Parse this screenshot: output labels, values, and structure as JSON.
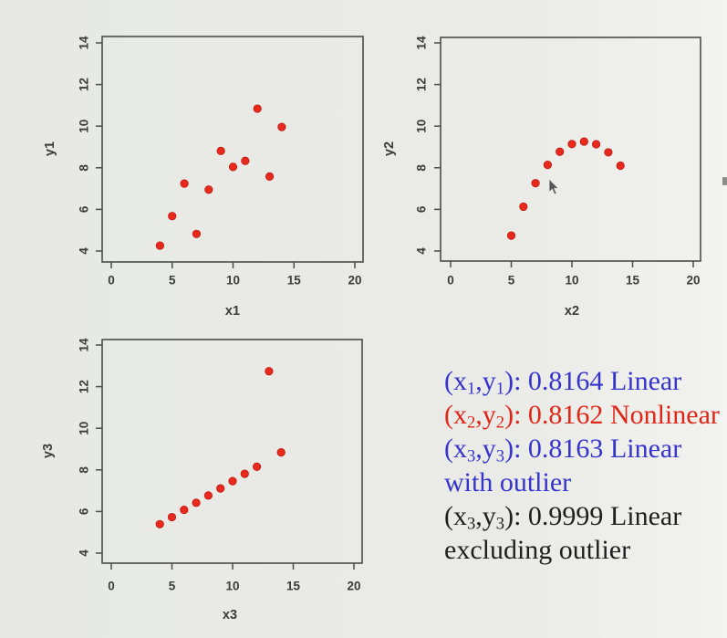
{
  "colors": {
    "background": "#e9eae6",
    "point": "#e8291e",
    "point_edge": "#c0170e",
    "frame": "#4b4b49",
    "axis_text": "#3b3b39",
    "annotation_blue": "#3534cd",
    "annotation_red": "#e02617",
    "annotation_black": "#1f1f1f"
  },
  "chart_data": [
    {
      "type": "scatter",
      "title": "",
      "xlabel": "x1",
      "ylabel": "y1",
      "xlim": [
        0,
        20
      ],
      "ylim": [
        4,
        14
      ],
      "xticks": [
        0,
        5,
        10,
        15,
        20
      ],
      "yticks": [
        4,
        6,
        8,
        10,
        12,
        14
      ],
      "grid": false,
      "legend": false,
      "marker": "filled-circle",
      "points": [
        [
          4,
          4.26
        ],
        [
          5,
          5.68
        ],
        [
          6,
          7.24
        ],
        [
          7,
          4.82
        ],
        [
          8,
          6.95
        ],
        [
          9,
          8.81
        ],
        [
          10,
          8.04
        ],
        [
          11,
          8.33
        ],
        [
          12,
          10.84
        ],
        [
          13,
          7.58
        ],
        [
          14,
          9.96
        ]
      ]
    },
    {
      "type": "scatter",
      "title": "",
      "xlabel": "x2",
      "ylabel": "y2",
      "xlim": [
        0,
        20
      ],
      "ylim": [
        4,
        14
      ],
      "xticks": [
        0,
        5,
        10,
        15,
        20
      ],
      "yticks": [
        4,
        6,
        8,
        10,
        12,
        14
      ],
      "grid": false,
      "legend": false,
      "marker": "filled-circle",
      "points": [
        [
          5,
          4.74
        ],
        [
          6,
          6.13
        ],
        [
          7,
          7.26
        ],
        [
          8,
          8.14
        ],
        [
          9,
          8.77
        ],
        [
          10,
          9.14
        ],
        [
          11,
          9.26
        ],
        [
          12,
          9.13
        ],
        [
          13,
          8.74
        ],
        [
          14,
          8.1
        ]
      ]
    },
    {
      "type": "scatter",
      "title": "",
      "xlabel": "x3",
      "ylabel": "y3",
      "xlim": [
        0,
        20
      ],
      "ylim": [
        4,
        14
      ],
      "xticks": [
        0,
        5,
        10,
        15,
        20
      ],
      "yticks": [
        4,
        6,
        8,
        10,
        12,
        14
      ],
      "grid": false,
      "legend": false,
      "marker": "filled-circle",
      "points": [
        [
          4,
          5.39
        ],
        [
          5,
          5.73
        ],
        [
          6,
          6.08
        ],
        [
          7,
          6.42
        ],
        [
          8,
          6.77
        ],
        [
          9,
          7.11
        ],
        [
          10,
          7.46
        ],
        [
          11,
          7.81
        ],
        [
          12,
          8.15
        ],
        [
          13,
          12.74
        ],
        [
          14,
          8.84
        ]
      ]
    }
  ],
  "annotations": {
    "lines": [
      {
        "color": "blue",
        "segments": [
          {
            "text": "(x"
          },
          {
            "text": "1",
            "sub": true
          },
          {
            "text": ",y"
          },
          {
            "text": "1",
            "sub": true
          },
          {
            "text": "): 0.8164 Linear"
          }
        ]
      },
      {
        "color": "red",
        "segments": [
          {
            "text": "(x"
          },
          {
            "text": "2",
            "sub": true
          },
          {
            "text": ",y"
          },
          {
            "text": "2",
            "sub": true
          },
          {
            "text": "): 0.8162 Nonlinear"
          }
        ]
      },
      {
        "color": "blue",
        "segments": [
          {
            "text": "(x"
          },
          {
            "text": "3",
            "sub": true
          },
          {
            "text": ",y"
          },
          {
            "text": "3",
            "sub": true
          },
          {
            "text": "): 0.8163 Linear"
          }
        ]
      },
      {
        "color": "blue",
        "segments": [
          {
            "text": "with outlier"
          }
        ]
      },
      {
        "color": "black",
        "segments": [
          {
            "text": "(x"
          },
          {
            "text": "3",
            "sub": true
          },
          {
            "text": ",y"
          },
          {
            "text": "3",
            "sub": true
          },
          {
            "text": "): 0.9999 Linear"
          }
        ]
      },
      {
        "color": "black",
        "segments": [
          {
            "text": "excluding outlier"
          }
        ]
      }
    ]
  },
  "icons": {
    "cursor": "mouse-arrow-pointer"
  }
}
